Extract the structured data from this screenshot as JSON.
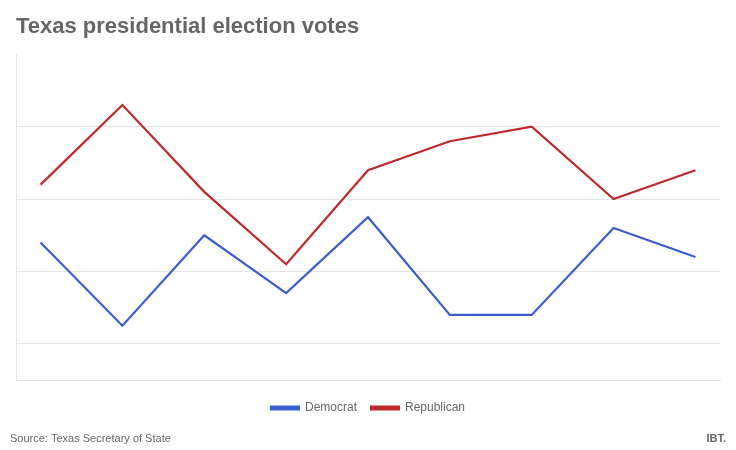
{
  "chart_data": {
    "type": "line",
    "title": "Texas presidential election votes",
    "x": [
      0,
      1,
      2,
      3,
      4,
      5,
      6,
      7,
      8
    ],
    "series": [
      {
        "name": "Democrat",
        "color": "#3a5fcd",
        "values": [
          0.58,
          0.35,
          0.6,
          0.44,
          0.65,
          0.38,
          0.38,
          0.62,
          0.54
        ]
      },
      {
        "name": "Republican",
        "color": "#c0292b",
        "values": [
          0.74,
          0.96,
          0.72,
          0.52,
          0.78,
          0.86,
          0.9,
          0.7,
          0.78
        ]
      }
    ],
    "xlim": [
      -0.3,
      8.3
    ],
    "ylim": [
      0.2,
      1.1
    ],
    "yticks": [
      0.3,
      0.5,
      0.7,
      0.9
    ],
    "grid": true,
    "tick_labels": false,
    "legend": "bottom",
    "annotations": [
      "Source: Texas Secretary of State",
      "IBT."
    ]
  }
}
